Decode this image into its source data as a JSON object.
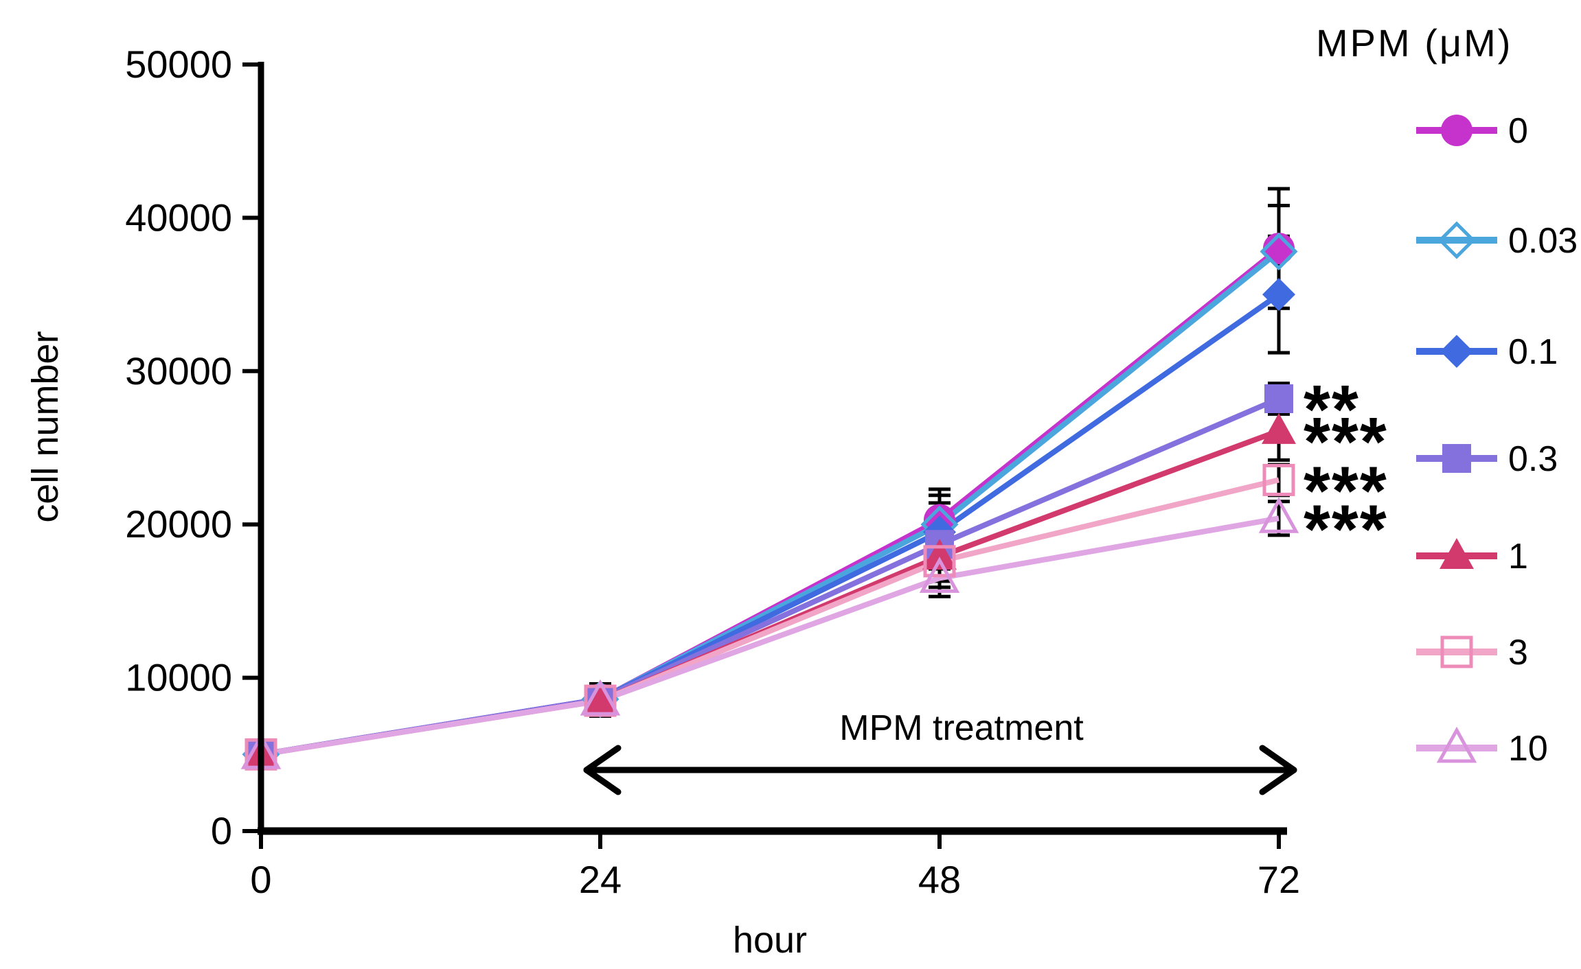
{
  "chart_data": {
    "type": "line",
    "title": "",
    "xlabel": "hour",
    "ylabel": "cell number",
    "legend_title": "MPM (μM)",
    "x": [
      0,
      24,
      48,
      72
    ],
    "xlim": [
      0,
      72
    ],
    "ylim": [
      0,
      50000
    ],
    "yticks": [
      0,
      10000,
      20000,
      30000,
      40000,
      50000
    ],
    "xticks": [
      0,
      24,
      48,
      72
    ],
    "grid": false,
    "legend_position": "right",
    "series": [
      {
        "name": "0",
        "marker": "circle",
        "fill": true,
        "color": "#c633cc",
        "marker_color": "#c633cc",
        "values": [
          5000,
          8600,
          20300,
          38000
        ],
        "errors": [
          0,
          1000,
          2000,
          3900
        ],
        "significance": ""
      },
      {
        "name": "0.03",
        "marker": "diamond",
        "fill": false,
        "color": "#4ba6dd",
        "marker_color": "#4ba6dd",
        "values": [
          5000,
          8600,
          20000,
          37800
        ],
        "errors": [
          0,
          1000,
          1900,
          3000
        ],
        "significance": ""
      },
      {
        "name": "0.1",
        "marker": "diamond",
        "fill": true,
        "color": "#3f6ae0",
        "marker_color": "#3f6ae0",
        "values": [
          5000,
          8600,
          19500,
          35000
        ],
        "errors": [
          0,
          1000,
          1900,
          3800
        ],
        "significance": ""
      },
      {
        "name": "0.3",
        "marker": "square",
        "fill": true,
        "color": "#8471dd",
        "marker_color": "#8471dd",
        "values": [
          5000,
          8600,
          18700,
          28200
        ],
        "errors": [
          0,
          1000,
          1600,
          1000
        ],
        "significance": "**"
      },
      {
        "name": "1",
        "marker": "triangle",
        "fill": true,
        "color": "#d23a6e",
        "marker_color": "#d23a6e",
        "values": [
          5000,
          8500,
          17900,
          26100
        ],
        "errors": [
          0,
          1000,
          1600,
          1900
        ],
        "significance": "***"
      },
      {
        "name": "3",
        "marker": "square",
        "fill": false,
        "color": "#f1a6c8",
        "marker_color": "#ed8bb9",
        "values": [
          5000,
          8500,
          17600,
          22900
        ],
        "errors": [
          0,
          1000,
          1700,
          1000
        ],
        "significance": "***"
      },
      {
        "name": "10",
        "marker": "triangle",
        "fill": false,
        "color": "#e0a6e4",
        "marker_color": "#d893dc",
        "values": [
          5000,
          8500,
          16500,
          20400
        ],
        "errors": [
          0,
          1000,
          1200,
          1100
        ],
        "significance": "***"
      }
    ],
    "annotation": {
      "text": "MPM treatment",
      "from_hour": 24,
      "to_hour": 72
    }
  },
  "colors": {
    "axis": "#000000",
    "error_bar": "#000000",
    "background": "#ffffff"
  }
}
